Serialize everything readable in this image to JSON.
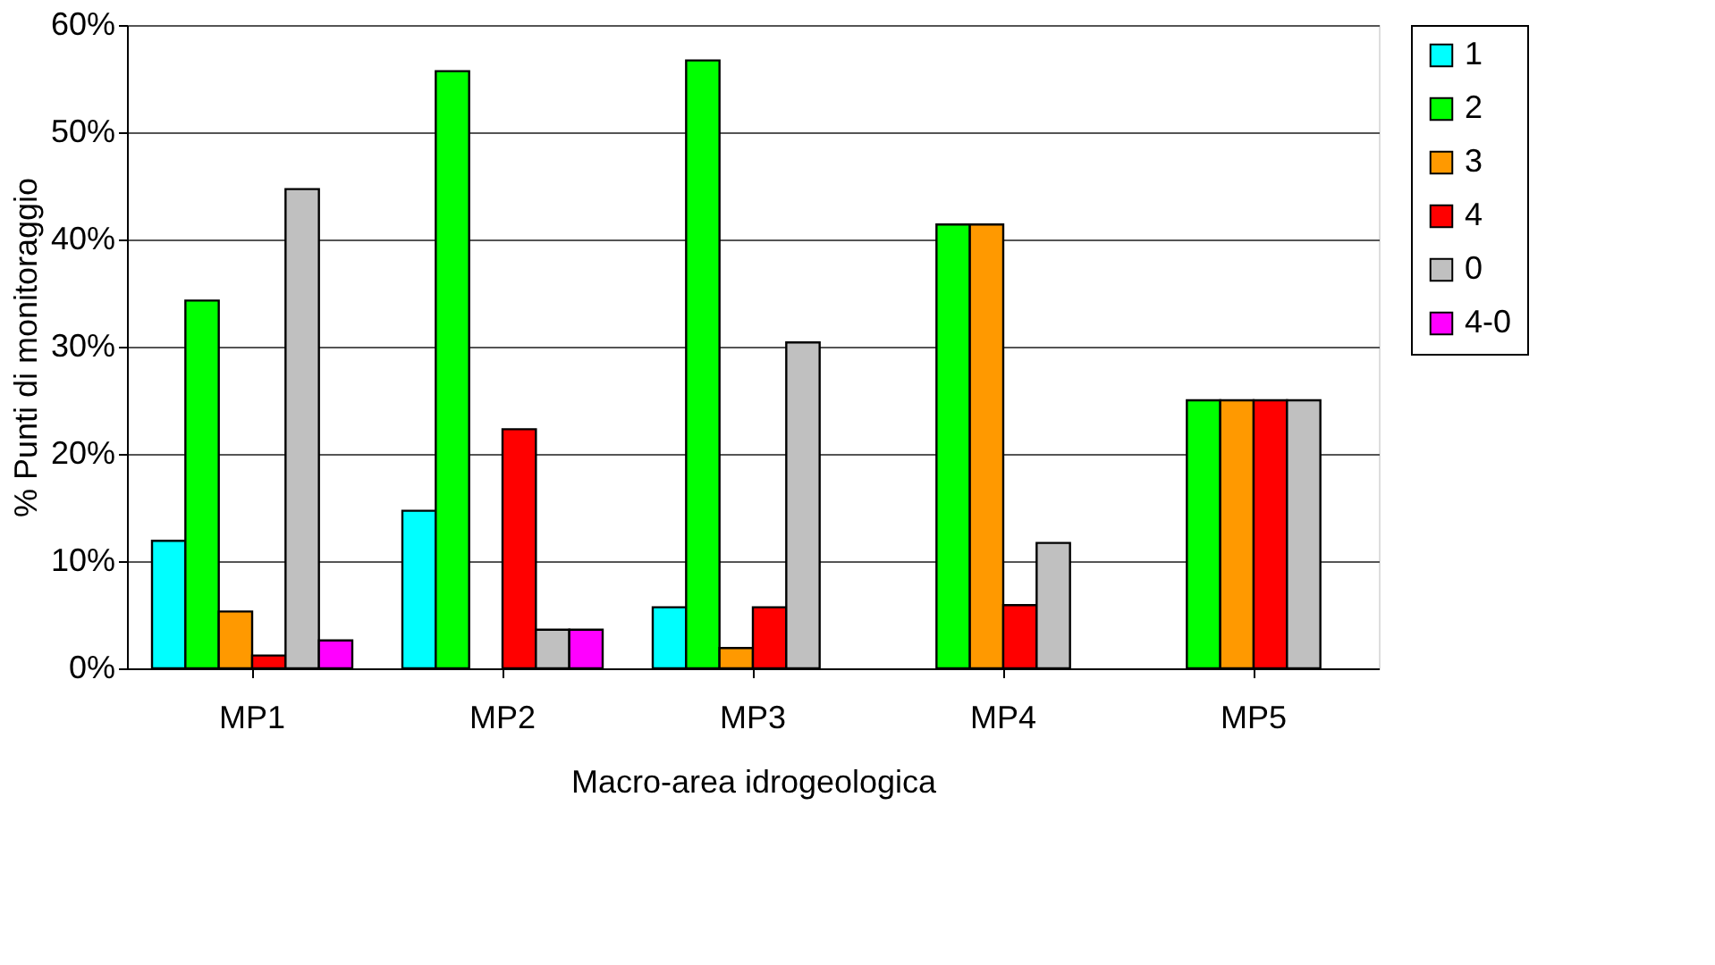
{
  "chart_data": {
    "type": "bar",
    "xlabel": "Macro-area idrogeologica",
    "ylabel": "% Punti di monitoraggio",
    "categories": [
      "MP1",
      "MP2",
      "MP3",
      "MP4",
      "MP5"
    ],
    "series": [
      {
        "name": "1",
        "color": "#00ffff",
        "values": [
          11.9,
          14.7,
          5.7,
          null,
          null
        ]
      },
      {
        "name": "2",
        "color": "#00ff00",
        "values": [
          34.3,
          55.7,
          56.7,
          41.4,
          25.0
        ]
      },
      {
        "name": "3",
        "color": "#ff9900",
        "values": [
          5.3,
          null,
          1.9,
          41.4,
          25.0
        ]
      },
      {
        "name": "4",
        "color": "#ff0000",
        "values": [
          1.2,
          22.3,
          5.7,
          5.9,
          25.0
        ]
      },
      {
        "name": "0",
        "color": "#c0c0c0",
        "values": [
          44.7,
          3.6,
          30.4,
          11.7,
          25.0
        ]
      },
      {
        "name": "4-0",
        "color": "#ff00ff",
        "values": [
          2.6,
          3.6,
          null,
          null,
          null
        ]
      }
    ],
    "ylim": [
      0,
      60
    ],
    "yticks": [
      {
        "value": 0,
        "label": "0%"
      },
      {
        "value": 10,
        "label": "10%"
      },
      {
        "value": 20,
        "label": "20%"
      },
      {
        "value": 30,
        "label": "30%"
      },
      {
        "value": 40,
        "label": "40%"
      },
      {
        "value": 50,
        "label": "50%"
      },
      {
        "value": 60,
        "label": "60%"
      }
    ],
    "grid": "y",
    "legend": "right"
  }
}
